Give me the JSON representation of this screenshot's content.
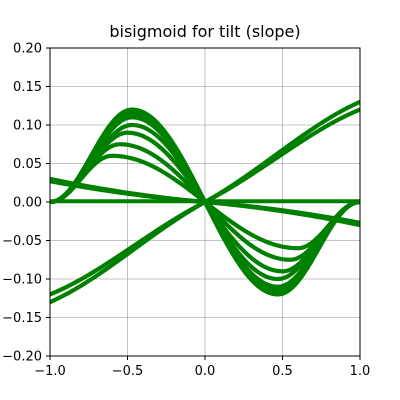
{
  "chart_data": {
    "type": "line",
    "title": "bisigmoid for tilt (slope)",
    "xlabel": "",
    "ylabel": "",
    "xlim": [
      -1.0,
      1.0
    ],
    "ylim": [
      -0.2,
      0.2
    ],
    "grid": true,
    "x_ticks": [
      -1.0,
      -0.5,
      0.0,
      0.5,
      1.0
    ],
    "x_tick_labels": [
      "−1.0",
      "−0.5",
      "0.0",
      "0.5",
      "1.0"
    ],
    "y_ticks": [
      -0.2,
      -0.15,
      -0.1,
      -0.05,
      0.0,
      0.05,
      0.1,
      0.15,
      0.2
    ],
    "y_tick_labels": [
      "−0.20",
      "−0.15",
      "−0.10",
      "−0.05",
      "0.00",
      "0.05",
      "0.10",
      "0.15",
      "0.20"
    ],
    "line_color": "#008000",
    "series_groups": [
      {
        "kind": "hump",
        "amplitudes": [
          0.12,
          0.115,
          0.11,
          0.1,
          0.09,
          0.075,
          0.06
        ],
        "peak_positions": [
          0.47,
          0.47,
          0.47,
          0.47,
          0.5,
          0.55,
          0.6
        ],
        "tail_value": 0.0
      },
      {
        "kind": "diagonal",
        "values_at_x_minus_1": [
          0.03,
          0.027
        ],
        "values_at_x_plus_1": [
          -0.03,
          -0.027
        ]
      },
      {
        "kind": "crossing",
        "values_at_x_minus_1": [
          -0.12,
          -0.13
        ],
        "values_at_x_plus_1": [
          0.12,
          0.13
        ]
      }
    ]
  }
}
